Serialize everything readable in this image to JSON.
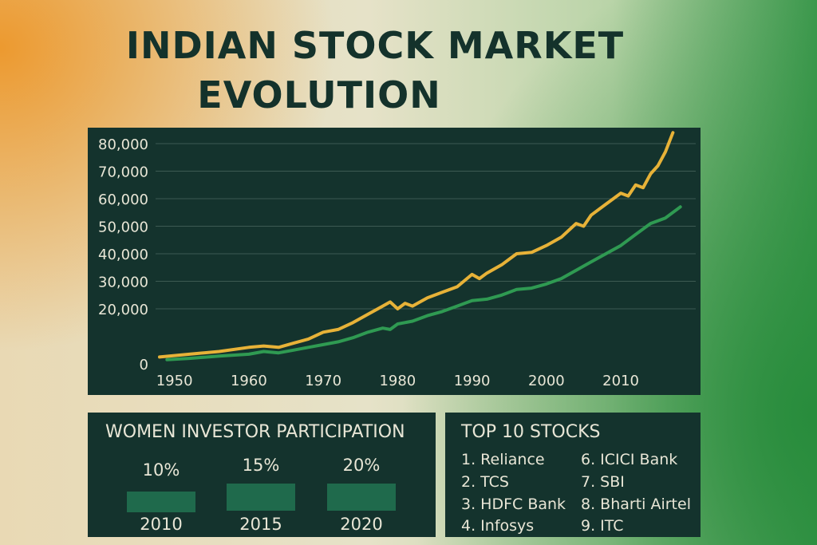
{
  "title_line1": "INDIAN STOCK MARKET",
  "title_line2": "EVOLUTION",
  "colors": {
    "panel": "#14332d",
    "series_upper": "#e7b238",
    "series_lower": "#2f9a52",
    "text": "#e8e6d6"
  },
  "chart_data": [
    {
      "type": "line",
      "title": "",
      "xlabel": "",
      "ylabel": "",
      "xlim": [
        1948,
        2019
      ],
      "ylim": [
        0,
        80000
      ],
      "x_ticks": [
        "1950",
        "1960",
        "1970",
        "1980",
        "1990",
        "2000",
        "2010"
      ],
      "y_ticks": [
        "0",
        "20,000",
        "30,000",
        "40,000",
        "50,000",
        "60,000",
        "70,000",
        "80,000"
      ],
      "grid": true,
      "legend": "none",
      "series": [
        {
          "color": "#e7b238",
          "x": [
            1948,
            1952,
            1956,
            1960,
            1962,
            1964,
            1966,
            1968,
            1970,
            1972,
            1974,
            1976,
            1978,
            1979,
            1980,
            1981,
            1982,
            1984,
            1986,
            1988,
            1990,
            1991,
            1992,
            1994,
            1996,
            1998,
            2000,
            2002,
            2004,
            2005,
            2006,
            2008,
            2010,
            2011,
            2012,
            2013,
            2014,
            2015,
            2016,
            2017
          ],
          "y": [
            2500,
            3500,
            4500,
            6000,
            6500,
            6000,
            7500,
            9000,
            11500,
            12500,
            15000,
            18000,
            21000,
            22500,
            20000,
            22000,
            21000,
            24000,
            26000,
            28000,
            32500,
            31000,
            33000,
            36000,
            40000,
            40500,
            43000,
            46000,
            51000,
            50000,
            54000,
            58000,
            62000,
            61000,
            65000,
            64000,
            69000,
            72000,
            77000,
            84000
          ]
        },
        {
          "color": "#2f9a52",
          "x": [
            1949,
            1952,
            1956,
            1960,
            1962,
            1964,
            1966,
            1968,
            1970,
            1972,
            1974,
            1976,
            1978,
            1979,
            1980,
            1982,
            1984,
            1986,
            1988,
            1990,
            1992,
            1994,
            1996,
            1998,
            2000,
            2002,
            2004,
            2006,
            2008,
            2010,
            2012,
            2014,
            2016,
            2018
          ],
          "y": [
            1500,
            2000,
            2800,
            3500,
            4500,
            4000,
            5000,
            6000,
            7000,
            8000,
            9500,
            11500,
            13000,
            12500,
            14500,
            15500,
            17500,
            19000,
            21000,
            23000,
            23500,
            25000,
            27000,
            27500,
            29000,
            31000,
            34000,
            37000,
            40000,
            43000,
            47000,
            51000,
            53000,
            57000
          ]
        }
      ]
    },
    {
      "type": "bar",
      "title": "WOMEN INVESTOR PARTICIPATION",
      "categories": [
        "2010",
        "2015",
        "2020"
      ],
      "values": [
        10,
        15,
        20
      ],
      "value_labels": [
        "10%",
        "15%",
        "20%"
      ],
      "ylabel": "",
      "ylim": [
        0,
        100
      ]
    }
  ],
  "stocks": {
    "heading": "TOP 10 STOCKS",
    "col1": [
      "1. Reliance",
      "2. TCS",
      "3. HDFC Bank",
      "4. Infosys"
    ],
    "col2": [
      "6. ICICI Bank",
      "7. SBI",
      "8. Bharti Airtel",
      "9. ITC"
    ]
  }
}
